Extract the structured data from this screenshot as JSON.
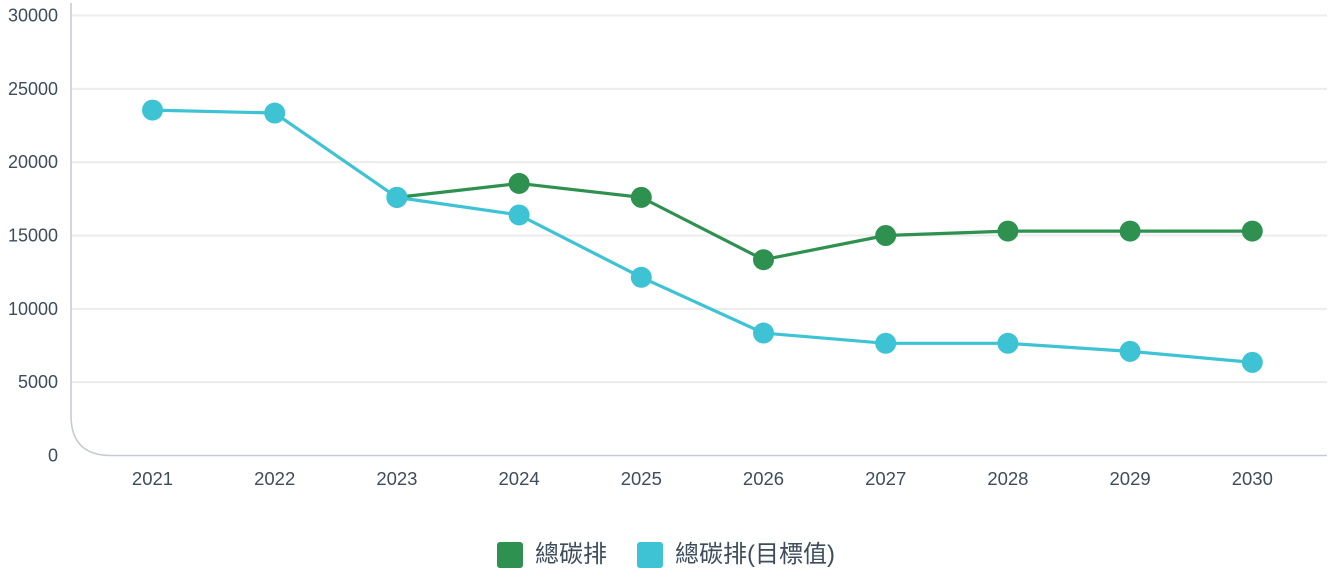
{
  "chart_data": {
    "type": "line",
    "title": "",
    "xlabel": "",
    "ylabel": "",
    "categories": [
      "2021",
      "2022",
      "2023",
      "2024",
      "2025",
      "2026",
      "2027",
      "2028",
      "2029",
      "2030"
    ],
    "series": [
      {
        "name": "總碳排",
        "key": "total-emissions",
        "color": "#2f9150",
        "values": [
          null,
          null,
          17600,
          18550,
          17600,
          13350,
          15000,
          15300,
          15300,
          15300
        ]
      },
      {
        "name": "總碳排(目標值)",
        "key": "emissions-target",
        "color": "#3ec3d5",
        "values": [
          23550,
          23350,
          17600,
          16400,
          12150,
          8350,
          7650,
          7650,
          7100,
          6350
        ]
      }
    ],
    "ylim": [
      0,
      30000
    ],
    "yticks": [
      0,
      5000,
      10000,
      15000,
      20000,
      25000,
      30000
    ],
    "grid": true,
    "legend_position": "bottom",
    "marker": "circle"
  },
  "colors": {
    "background": "#ffffff",
    "axis_text": "#3d4d5c",
    "grid_line": "#ececec",
    "axis_line": "#c7cbd2"
  }
}
